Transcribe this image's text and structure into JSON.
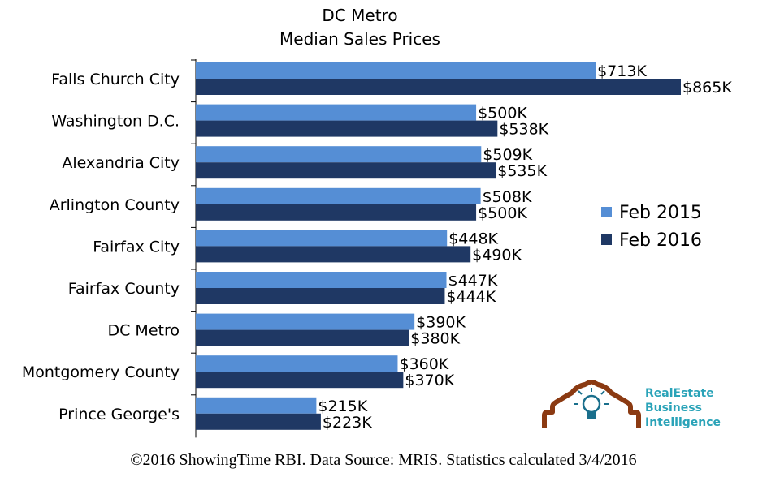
{
  "chart_data": {
    "type": "bar",
    "orientation": "horizontal",
    "title": "DC Metro",
    "subtitle": "Median Sales Prices",
    "categories": [
      "Falls Church City",
      "Washington D.C.",
      "Alexandria City",
      "Arlington County",
      "Fairfax City",
      "Fairfax County",
      "DC Metro",
      "Montgomery County",
      "Prince George's"
    ],
    "series": [
      {
        "name": "Feb 2015",
        "color": "#558ed5",
        "values": [
          713,
          500,
          509,
          508,
          448,
          447,
          390,
          360,
          215
        ],
        "labels": [
          "$713K",
          "$500K",
          "$509K",
          "$508K",
          "$448K",
          "$447K",
          "$390K",
          "$360K",
          "$215K"
        ]
      },
      {
        "name": "Feb 2016",
        "color": "#1f3864",
        "values": [
          865,
          538,
          535,
          500,
          490,
          444,
          380,
          370,
          223
        ],
        "labels": [
          "$865K",
          "$538K",
          "$535K",
          "$500K",
          "$490K",
          "$444K",
          "$380K",
          "$370K",
          "$223K"
        ]
      }
    ],
    "unit": "$K",
    "xlim": [
      0,
      865
    ],
    "grid": false,
    "legend_position": "right"
  },
  "footer": "©2016 ShowingTime RBI. Data Source: MRIS. Statistics calculated 3/4/2016",
  "logo": {
    "line1": "RealEstate",
    "line2": "Business",
    "line3": "Intelligence"
  }
}
